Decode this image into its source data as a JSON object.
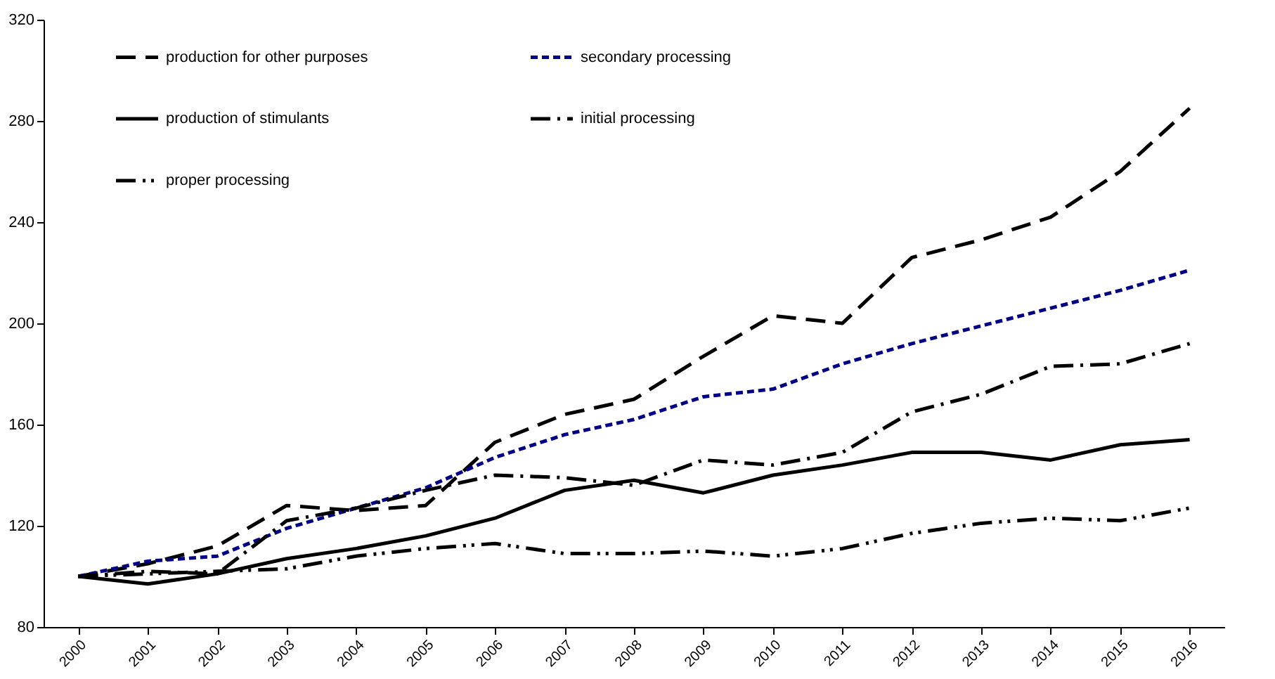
{
  "chart_data": {
    "type": "line",
    "categories": [
      "2000",
      "2001",
      "2002",
      "2003",
      "2004",
      "2005",
      "2006",
      "2007",
      "2008",
      "2009",
      "2010",
      "2011",
      "2012",
      "2013",
      "2014",
      "2015",
      "2016"
    ],
    "series": [
      {
        "name": "production for other purposes",
        "color": "#000000",
        "line_style": "dashed",
        "values": [
          100,
          105,
          112,
          128,
          126,
          128,
          153,
          164,
          170,
          187,
          203,
          200,
          226,
          233,
          242,
          260,
          285
        ]
      },
      {
        "name": "secondary processing",
        "color": "#000080",
        "line_style": "dotted",
        "values": [
          100,
          106,
          108,
          119,
          127,
          135,
          147,
          156,
          162,
          171,
          174,
          184,
          192,
          199,
          206,
          213,
          221
        ]
      },
      {
        "name": "production of stimulants",
        "color": "#000000",
        "line_style": "solid",
        "values": [
          100,
          97,
          101,
          107,
          111,
          116,
          123,
          134,
          138,
          133,
          140,
          144,
          149,
          149,
          146,
          152,
          154
        ]
      },
      {
        "name": "initial processing",
        "color": "#000000",
        "line_style": "dashdot",
        "values": [
          100,
          102,
          101,
          122,
          127,
          134,
          140,
          139,
          136,
          146,
          144,
          149,
          165,
          172,
          183,
          184,
          192
        ]
      },
      {
        "name": "proper processing",
        "color": "#000000",
        "line_style": "dashdotdot",
        "values": [
          100,
          101,
          102,
          103,
          108,
          111,
          113,
          109,
          109,
          110,
          108,
          111,
          117,
          121,
          123,
          122,
          127
        ]
      }
    ],
    "ylim": [
      80,
      320
    ],
    "yticks": [
      80,
      120,
      160,
      200,
      240,
      280,
      320
    ],
    "grid": false,
    "legend": "top left",
    "marker": "none"
  }
}
